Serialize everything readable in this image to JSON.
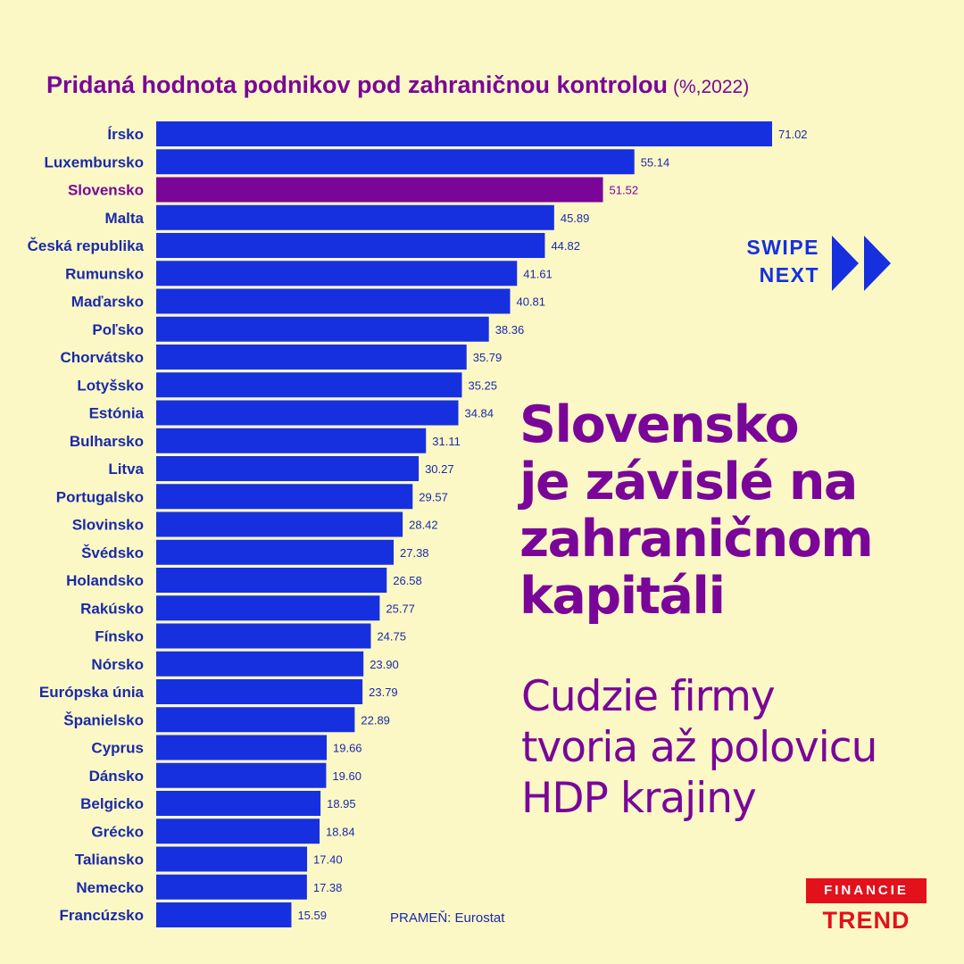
{
  "header": {
    "title": "Pridaná hodnota podnikov pod zahraničnou kontrolou",
    "unit": "(%,2022)"
  },
  "chart_data": {
    "type": "bar",
    "orientation": "horizontal",
    "categories": [
      "Írsko",
      "Luxembursko",
      "Slovensko",
      "Malta",
      "Česká republika",
      "Rumunsko",
      "Maďarsko",
      "Poľsko",
      "Chorvátsko",
      "Lotyšsko",
      "Estónia",
      "Bulharsko",
      "Litva",
      "Portugalsko",
      "Slovinsko",
      "Švédsko",
      "Holandsko",
      "Rakúsko",
      "Fínsko",
      "Nórsko",
      "Európska únia",
      "Španielsko",
      "Cyprus",
      "Dánsko",
      "Belgicko",
      "Grécko",
      "Taliansko",
      "Nemecko",
      "Francúzsko"
    ],
    "values": [
      71.02,
      55.14,
      51.52,
      45.89,
      44.82,
      41.61,
      40.81,
      38.36,
      35.79,
      35.25,
      34.84,
      31.11,
      30.27,
      29.57,
      28.42,
      27.38,
      26.58,
      25.77,
      24.75,
      23.9,
      23.79,
      22.89,
      19.66,
      19.6,
      18.95,
      18.84,
      17.4,
      17.38,
      15.59
    ],
    "value_labels": [
      "71.02",
      "55.14",
      "51.52",
      "45.89",
      "44.82",
      "41.61",
      "40.81",
      "38.36",
      "35.79",
      "35.25",
      "34.84",
      "31.11",
      "30.27",
      "29.57",
      "28.42",
      "27.38",
      "26.58",
      "25.77",
      "24.75",
      "23.90",
      "23.79",
      "22.89",
      "19.66",
      "19.60",
      "18.95",
      "18.84",
      "17.40",
      "17.38",
      "15.59"
    ],
    "highlight": "Slovensko",
    "title": "Pridaná hodnota podnikov pod zahraničnou kontrolou",
    "unit": "(%,2022)",
    "xlim": [
      0,
      71.02
    ],
    "grid": false,
    "legend": "none"
  },
  "colors": {
    "background": "#fbf8c6",
    "bar": "#1630e0",
    "highlight": "#7a0699",
    "label": "#1a2aa8",
    "brand_red": "#e3111b"
  },
  "swipe": {
    "line1": "SWIPE",
    "line2": "NEXT",
    "icon": "double-chevron-right-icon"
  },
  "headline": {
    "lines": [
      "Slovensko",
      "je závislé na",
      "zahraničnom",
      "kapitáli"
    ]
  },
  "subhead": {
    "lines": [
      "Cudzie firmy",
      "tvoria až polovicu",
      "HDP krajiny"
    ]
  },
  "source": "PRAMEŇ: Eurostat",
  "brand": {
    "top": "FINANCIE",
    "bottom": "TREND"
  }
}
